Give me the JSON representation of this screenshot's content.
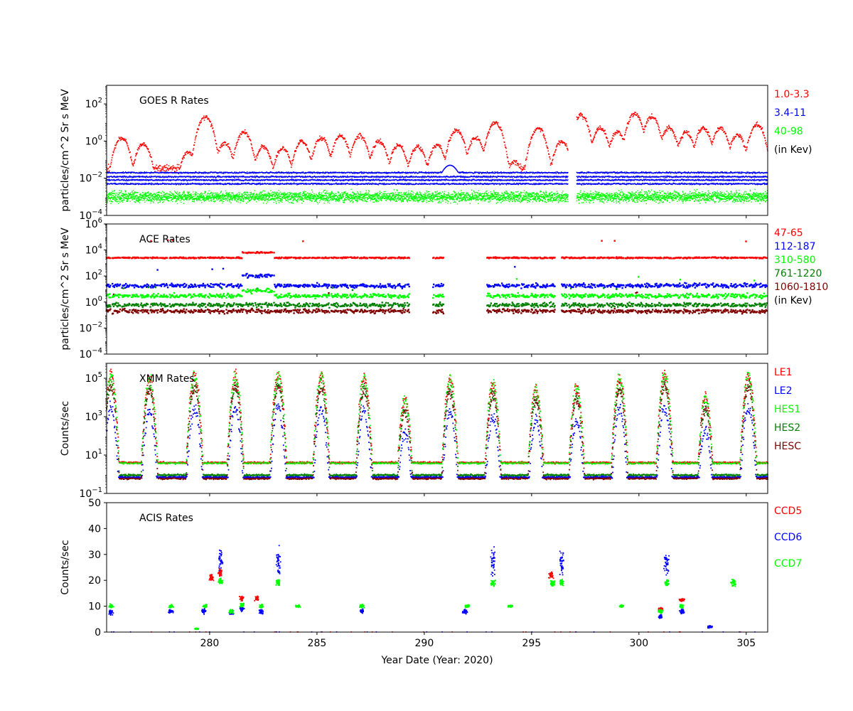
{
  "xaxis": {
    "label": "Year Date (Year: 2020)",
    "range": [
      275.2,
      306
    ],
    "ticks": [
      280,
      285,
      290,
      295,
      300,
      305
    ],
    "tick_labels": [
      "280",
      "285",
      "290",
      "295",
      "300",
      "305"
    ]
  },
  "chart_data": [
    {
      "type": "scatter",
      "title": "GOES R Rates",
      "ylabel": "particles/cm^2 Sr s MeV",
      "yscale": "log",
      "ylim": [
        0.0001,
        1000
      ],
      "ytick_exponents": [
        -4,
        -2,
        0,
        2
      ],
      "ytick_labels": [
        "10",
        "10",
        "10",
        "10"
      ],
      "ytick_superscripts": [
        "−4",
        "−2",
        "0",
        "2"
      ],
      "legend": [
        "1.0-3.3",
        "3.4-11",
        "40-98",
        "(in Kev)"
      ],
      "legend_colors": [
        "#ff0000",
        "#0000ff",
        "#00ff00",
        "#000000"
      ],
      "gaps": [
        [
          296.7,
          297.1
        ]
      ],
      "series": [
        {
          "name": "1.0-3.3",
          "color": "#ff0000",
          "baseline": 0.035,
          "peak_times": [
            275.9,
            276.9,
            279.0,
            279.8,
            280.7,
            281.6,
            282.5,
            283.4,
            284.3,
            285.2,
            286.1,
            287.0,
            287.9,
            288.8,
            289.7,
            290.6,
            291.5,
            292.4,
            293.3,
            294.2,
            295.3,
            296.4,
            297.3,
            298.2,
            299.0,
            299.8,
            300.6,
            301.4,
            302.2,
            303.0,
            303.8,
            304.6,
            305.5
          ],
          "peak_values": [
            1.5,
            0.7,
            0.25,
            20,
            0.8,
            3,
            0.5,
            0.4,
            1.0,
            1.5,
            2.0,
            2.0,
            1.0,
            0.6,
            0.5,
            0.6,
            4,
            1.5,
            10,
            0.08,
            5,
            1.0,
            25,
            5,
            3,
            30,
            20,
            5,
            3,
            5,
            5,
            2,
            8
          ]
        },
        {
          "name": "3.4-11",
          "color": "#0000ff",
          "baseline": 0.02,
          "bump_time": 291.2,
          "bump_value": 0.05
        },
        {
          "name": "40-98",
          "color": "#00ff00",
          "baseline": 0.001
        }
      ]
    },
    {
      "type": "scatter",
      "title": "ACE Rates",
      "ylabel": "particles/cm^2 Sr s MeV",
      "yscale": "log",
      "ylim": [
        0.0001,
        1000000
      ],
      "ytick_exponents": [
        -4,
        -2,
        0,
        2,
        4,
        6
      ],
      "ytick_labels": [
        "10",
        "10",
        "10",
        "10",
        "10",
        "10"
      ],
      "ytick_superscripts": [
        "−4",
        "−2",
        "0",
        "2",
        "4",
        "6"
      ],
      "legend": [
        "47-65",
        "112-187",
        "310-580",
        "761-1220",
        "1060-1810",
        "(in Kev)"
      ],
      "legend_colors": [
        "#ff0000",
        "#0000ff",
        "#00ff00",
        "#008000",
        "#800000",
        "#000000"
      ],
      "gaps": [
        [
          289.3,
          290.4
        ],
        [
          290.9,
          292.9
        ],
        [
          296.1,
          296.4
        ]
      ],
      "series": [
        {
          "name": "47-65",
          "color": "#ff0000",
          "baseline": 2500
        },
        {
          "name": "112-187",
          "color": "#0000ff",
          "baseline": 18
        },
        {
          "name": "310-580",
          "color": "#00ff00",
          "baseline": 3
        },
        {
          "name": "761-1220",
          "color": "#008000",
          "baseline": 0.6
        },
        {
          "name": "1060-1810",
          "color": "#800000",
          "baseline": 0.2
        }
      ]
    },
    {
      "type": "scatter",
      "title": "XMM Rates",
      "ylabel": "Counts/sec",
      "yscale": "log",
      "ylim": [
        0.1,
        600000
      ],
      "ytick_exponents": [
        -1,
        1,
        3,
        5
      ],
      "ytick_labels": [
        "10",
        "10",
        "10",
        "10"
      ],
      "ytick_superscripts": [
        "−1",
        "1",
        "3",
        "5"
      ],
      "legend": [
        "LE1",
        "LE2",
        "HES1",
        "HES2",
        "HESC"
      ],
      "legend_colors": [
        "#ff0000",
        "#0000ff",
        "#00ff00",
        "#008000",
        "#800000"
      ],
      "spike_times": [
        275.4,
        277.2,
        279.3,
        281.2,
        283.2,
        285.2,
        287.2,
        289.1,
        291.2,
        293.2,
        295.2,
        297.1,
        299.1,
        301.2,
        303.1,
        305.1
      ],
      "spike_values": [
        150000,
        100000,
        150000,
        130000,
        150000,
        130000,
        100000,
        8000,
        80000,
        50000,
        30000,
        30000,
        100000,
        150000,
        10000,
        150000
      ],
      "series": [
        {
          "name": "LE1",
          "color": "#ff0000",
          "baseline": 4
        },
        {
          "name": "LE2",
          "color": "#0000ff",
          "baseline": 0.7
        },
        {
          "name": "HES1",
          "color": "#00ff00",
          "baseline": 3.8
        },
        {
          "name": "HES2",
          "color": "#008000",
          "baseline": 0.9
        },
        {
          "name": "HESC",
          "color": "#800000",
          "baseline": 0.6
        }
      ]
    },
    {
      "type": "scatter",
      "title": "ACIS Rates",
      "ylabel": "Counts/sec",
      "yscale": "linear",
      "ylim": [
        0,
        50
      ],
      "yticks": [
        0,
        10,
        20,
        30,
        40,
        50
      ],
      "ytick_labels": [
        "0",
        "10",
        "20",
        "30",
        "40",
        "50"
      ],
      "legend": [
        "CCD5",
        "CCD6",
        "CCD7"
      ],
      "legend_colors": [
        "#ff0000",
        "#0000ff",
        "#00ff00"
      ],
      "series": [
        {
          "name": "CCD5",
          "color": "#ff0000",
          "clusters": [
            [
              280.1,
              21,
              1.5
            ],
            [
              280.5,
              23,
              2
            ],
            [
              281.5,
              13,
              1
            ],
            [
              282.2,
              13,
              1
            ],
            [
              295.9,
              22,
              2
            ],
            [
              301.0,
              9,
              0.5
            ],
            [
              302.0,
              12.5,
              0.8
            ]
          ]
        },
        {
          "name": "CCD6",
          "color": "#0000ff",
          "clusters": [
            [
              275.4,
              7.5,
              1
            ],
            [
              278.2,
              8,
              1
            ],
            [
              279.7,
              8,
              1
            ],
            [
              280.5,
              28,
              5
            ],
            [
              281.0,
              7.5,
              1
            ],
            [
              281.5,
              9,
              1
            ],
            [
              282.4,
              8,
              1
            ],
            [
              283.2,
              27,
              6
            ],
            [
              287.1,
              8,
              1
            ],
            [
              291.9,
              8,
              1
            ],
            [
              293.2,
              27,
              6
            ],
            [
              296.4,
              27,
              6
            ],
            [
              301.0,
              6,
              1
            ],
            [
              301.3,
              27,
              6
            ],
            [
              302.0,
              8,
              1
            ],
            [
              303.3,
              2,
              0.5
            ]
          ]
        },
        {
          "name": "CCD7",
          "color": "#00ff00",
          "clusters": [
            [
              275.4,
              10,
              0.8
            ],
            [
              278.2,
              10,
              0.8
            ],
            [
              279.4,
              1.3,
              0.3
            ],
            [
              279.8,
              10,
              0.8
            ],
            [
              280.5,
              19.5,
              1.5
            ],
            [
              281.0,
              8,
              0.8
            ],
            [
              281.5,
              10.5,
              0.8
            ],
            [
              282.4,
              10,
              0.8
            ],
            [
              283.2,
              19,
              1.5
            ],
            [
              284.1,
              10,
              0.5
            ],
            [
              287.1,
              10,
              0.8
            ],
            [
              292.0,
              10,
              0.8
            ],
            [
              293.2,
              19,
              1.5
            ],
            [
              294.0,
              10,
              0.5
            ],
            [
              296.0,
              19,
              1.5
            ],
            [
              296.4,
              19,
              1.5
            ],
            [
              299.2,
              10,
              0.5
            ],
            [
              301.0,
              8,
              0.8
            ],
            [
              301.3,
              19,
              1.5
            ],
            [
              302.0,
              10,
              0.8
            ],
            [
              304.4,
              19,
              1.5
            ]
          ]
        }
      ]
    }
  ]
}
